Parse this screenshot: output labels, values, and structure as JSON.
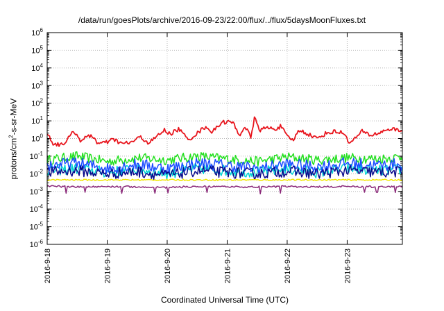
{
  "chart_data": {
    "type": "line",
    "title": "/data/run/goesPlots/archive/2016-09-23/22:00/flux/../flux/5daysMoonFluxes.txt",
    "xlabel": "Coordinated Universal Time (UTC)",
    "ylabel": {
      "pre": "protons/cm",
      "sup": "2",
      "post": "-s-sr-MeV"
    },
    "yscale": "log",
    "ylim": [
      1e-06,
      1000000.0
    ],
    "xlim": [
      "2016-09-18 00:00",
      "2016-09-23 22:00"
    ],
    "grid": true,
    "xticks": [
      {
        "label": "2016-9-18",
        "day": 0
      },
      {
        "label": "2016-9-19",
        "day": 1
      },
      {
        "label": "2016-9-20",
        "day": 2
      },
      {
        "label": "2016-9-21",
        "day": 3
      },
      {
        "label": "2016-9-22",
        "day": 4
      },
      {
        "label": "2016-9-23",
        "day": 5
      }
    ],
    "yticks": [
      {
        "base": "10",
        "exp": "-6"
      },
      {
        "base": "10",
        "exp": "-5"
      },
      {
        "base": "10",
        "exp": "-4"
      },
      {
        "base": "10",
        "exp": "-3"
      },
      {
        "base": "10",
        "exp": "-2"
      },
      {
        "base": "10",
        "exp": "-1"
      },
      {
        "base": "10",
        "exp": "0"
      },
      {
        "base": "10",
        "exp": "1"
      },
      {
        "base": "10",
        "exp": "2"
      },
      {
        "base": "10",
        "exp": "3"
      },
      {
        "base": "10",
        "exp": "4"
      },
      {
        "base": "10",
        "exp": "5"
      },
      {
        "base": "10",
        "exp": "6"
      }
    ],
    "series": [
      {
        "color": "#e8141c",
        "x": [
          0.0,
          0.1,
          0.2,
          0.3,
          0.45,
          0.55,
          0.75,
          0.85,
          1.0,
          1.1,
          1.25,
          1.4,
          1.55,
          1.7,
          1.85,
          1.95,
          2.05,
          2.2,
          2.35,
          2.5,
          2.65,
          2.75,
          2.9,
          3.0,
          3.1,
          3.2,
          3.3,
          3.4,
          3.45,
          3.55,
          3.65,
          3.8,
          3.9,
          4.0,
          4.1,
          4.2,
          4.35,
          4.5,
          4.65,
          4.8,
          4.95,
          5.05,
          5.15,
          5.25,
          5.4,
          5.55,
          5.7,
          5.85,
          5.92
        ],
        "y": [
          2.2,
          0.5,
          0.45,
          0.6,
          2.6,
          0.8,
          1.5,
          0.5,
          0.6,
          0.9,
          0.5,
          0.6,
          1.2,
          0.55,
          1.5,
          3.0,
          1.8,
          3.5,
          0.8,
          2.0,
          5.0,
          2.2,
          8.0,
          9.0,
          7.5,
          1.5,
          5.0,
          1.0,
          15.0,
          3.0,
          4.0,
          3.5,
          5.0,
          1.2,
          0.8,
          3.0,
          1.8,
          1.0,
          2.0,
          2.5,
          2.0,
          0.5,
          1.2,
          2.5,
          1.5,
          2.2,
          3.5,
          3.0,
          2.6
        ]
      },
      {
        "color": "#22e01e",
        "x": [
          0.0,
          0.5,
          1.0,
          1.5,
          2.0,
          2.5,
          3.0,
          3.5,
          4.0,
          4.5,
          5.0,
          5.5,
          5.92
        ],
        "y": [
          0.06,
          0.1,
          0.05,
          0.08,
          0.06,
          0.1,
          0.07,
          0.05,
          0.09,
          0.06,
          0.08,
          0.07,
          0.09
        ]
      },
      {
        "color": "#1a4cff",
        "x": [
          0.0,
          0.5,
          1.0,
          1.5,
          2.0,
          2.5,
          3.0,
          3.5,
          4.0,
          4.5,
          5.0,
          5.5,
          5.92
        ],
        "y": [
          0.03,
          0.04,
          0.02,
          0.035,
          0.02,
          0.04,
          0.03,
          0.02,
          0.035,
          0.025,
          0.04,
          0.03,
          0.035
        ]
      },
      {
        "color": "#00d4d4",
        "x": [
          0.0,
          0.5,
          1.0,
          1.5,
          2.0,
          2.5,
          3.0,
          3.5,
          4.0,
          4.5,
          5.0,
          5.5,
          5.92
        ],
        "y": [
          0.015,
          0.02,
          0.012,
          0.018,
          0.01,
          0.02,
          0.015,
          0.012,
          0.018,
          0.012,
          0.02,
          0.015,
          0.017
        ]
      },
      {
        "color": "#0a0a8c",
        "x": [
          0.0,
          0.5,
          1.0,
          1.5,
          2.0,
          2.5,
          3.0,
          3.5,
          4.0,
          4.5,
          5.0,
          5.5,
          5.92
        ],
        "y": [
          0.012,
          0.015,
          0.01,
          0.013,
          0.008,
          0.015,
          0.012,
          0.01,
          0.014,
          0.01,
          0.015,
          0.012,
          0.013
        ]
      },
      {
        "color": "#f0e600",
        "x": [
          0.0,
          0.5,
          1.0,
          1.5,
          2.0,
          2.5,
          3.0,
          3.5,
          4.0,
          4.5,
          5.0,
          5.5,
          5.92
        ],
        "y": [
          0.0045,
          0.0045,
          0.0045,
          0.0045,
          0.0045,
          0.0045,
          0.0045,
          0.0045,
          0.0045,
          0.0045,
          0.0045,
          0.0045,
          0.0045
        ]
      },
      {
        "color": "#8b2a7a",
        "x": [
          0.0,
          0.5,
          1.0,
          1.5,
          2.0,
          2.5,
          3.0,
          3.5,
          4.0,
          4.5,
          5.0,
          5.5,
          5.92
        ],
        "y": [
          0.002,
          0.0018,
          0.0019,
          0.0018,
          0.0017,
          0.0019,
          0.0018,
          0.0018,
          0.0019,
          0.0018,
          0.0019,
          0.0018,
          0.0019
        ]
      }
    ]
  }
}
